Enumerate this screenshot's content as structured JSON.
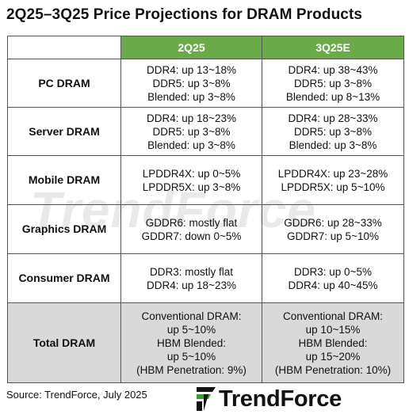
{
  "title": "2Q25–3Q25 Price Projections  for DRAM Products",
  "watermark": "TrendForce",
  "source": "Source: TrendForce, July 2025",
  "logo": {
    "text": "TrendForce",
    "icon": "trendforce-logo-icon"
  },
  "colors": {
    "header_green": "#6aaa48",
    "total_row_gray": "#d9d9d9"
  },
  "chart_data": {
    "type": "table",
    "columns": [
      "2Q25",
      "3Q25E"
    ],
    "rows": [
      {
        "label": "PC DRAM",
        "q2": [
          "DDR4: up 13~18%",
          "DDR5: up 3~8%",
          "Blended: up 3~8%"
        ],
        "q3": [
          "DDR4: up 38~43%",
          "DDR5: up 3~8%",
          "Blended: up 8~13%"
        ]
      },
      {
        "label": "Server DRAM",
        "q2": [
          "DDR4: up 18~23%",
          "DDR5: up 3~8%",
          "Blended: up 3~8%"
        ],
        "q3": [
          "DDR4: up 28~33%",
          "DDR5: up 3~8%",
          "Blended: up 3~8%"
        ]
      },
      {
        "label": "Mobile DRAM",
        "q2": [
          "LPDDR4X: up 0~5%",
          "LPDDR5X: up 3~8%"
        ],
        "q3": [
          "LPDDR4X: up 23~28%",
          "LPDDR5X: up 5~10%"
        ]
      },
      {
        "label": "Graphics DRAM",
        "q2": [
          "GDDR6: mostly flat",
          "GDDR7: down 0~5%"
        ],
        "q3": [
          "GDDR6: up 28~33%",
          "GDDR7: up 5~10%"
        ]
      },
      {
        "label": "Consumer DRAM",
        "q2": [
          "DDR3: mostly flat",
          "DDR4: up 18~23%"
        ],
        "q3": [
          "DDR3: up 0~5%",
          "DDR4: up 40~45%"
        ]
      },
      {
        "label": "Total DRAM",
        "q2": [
          "Conventional DRAM:",
          "up 5~10%",
          "HBM Blended:",
          "up 5~10%",
          "(HBM Penetration: 9%)"
        ],
        "q3": [
          "Conventional DRAM:",
          "up 10~15%",
          "HBM Blended:",
          "up 15~20%",
          "(HBM Penetration: 10%)"
        ]
      }
    ]
  }
}
